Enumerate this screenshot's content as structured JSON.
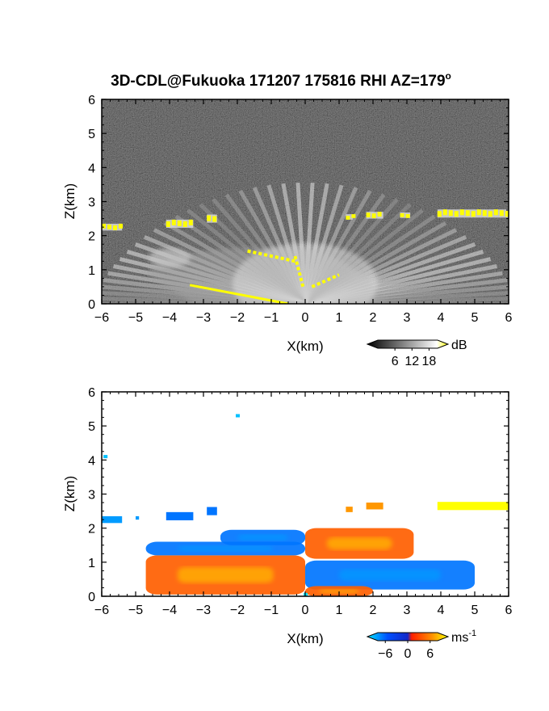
{
  "title": "3D-CDL@Fukuoka 171207 175816 RHI AZ=179",
  "title_superscript": "o",
  "chart_data": [
    {
      "type": "heatmap",
      "quantity": "backscatter intensity",
      "xlabel": "X(km)",
      "ylabel": "Z(km)",
      "xlim": [
        -6,
        6
      ],
      "ylim": [
        0,
        6
      ],
      "xticks": [
        "-6",
        "-5",
        "-4",
        "-3",
        "-2",
        "-1",
        "0",
        "1",
        "2",
        "3",
        "4",
        "5",
        "6"
      ],
      "yticks": [
        "0",
        "1",
        "2",
        "3",
        "4",
        "5",
        "6"
      ],
      "colorbar": {
        "unit": "dB",
        "ticks": [
          6,
          12,
          18
        ],
        "tick_labels": [
          "6",
          "12",
          "18"
        ],
        "range": [
          0,
          21
        ],
        "colors": [
          "#000000",
          "#ffffff",
          "#ffff00"
        ]
      },
      "features": {
        "cloud_layer": [
          {
            "x0": -6.0,
            "x1": -5.4,
            "z": 2.25,
            "dz": 0.1
          },
          {
            "x0": -4.1,
            "x1": -3.3,
            "z": 2.35,
            "dz": 0.12
          },
          {
            "x0": -2.9,
            "x1": -2.6,
            "z": 2.5,
            "dz": 0.12
          },
          {
            "x0": 1.2,
            "x1": 1.4,
            "z": 2.55,
            "dz": 0.08
          },
          {
            "x0": 1.8,
            "x1": 2.3,
            "z": 2.6,
            "dz": 0.1
          },
          {
            "x0": 2.8,
            "x1": 3.1,
            "z": 2.6,
            "dz": 0.08
          },
          {
            "x0": 3.9,
            "x1": 6.0,
            "z": 2.65,
            "dz": 0.12
          }
        ],
        "boundary_layer": {
          "x0": -4.7,
          "x1": 1.5,
          "z_top": 1.6
        },
        "ground_trace": {
          "x0": -3.4,
          "x1": -0.5,
          "z0": 0.55,
          "z1": 0.0
        }
      }
    },
    {
      "type": "heatmap",
      "quantity": "radial velocity",
      "xlabel": "X(km)",
      "ylabel": "Z(km)",
      "xlim": [
        -6,
        6
      ],
      "ylim": [
        0,
        6
      ],
      "xticks": [
        "-6",
        "-5",
        "-4",
        "-3",
        "-2",
        "-1",
        "0",
        "1",
        "2",
        "3",
        "4",
        "5",
        "6"
      ],
      "yticks": [
        "0",
        "1",
        "2",
        "3",
        "4",
        "5",
        "6"
      ],
      "colorbar": {
        "unit": "ms",
        "unit_exponent": "-1",
        "ticks": [
          -6,
          0,
          6
        ],
        "tick_labels": [
          "−6",
          "0",
          "6"
        ],
        "range": [
          -8,
          8
        ],
        "colors": [
          "#00e5ff",
          "#0050ff",
          "#ff2000",
          "#ffff00"
        ]
      },
      "regions": [
        {
          "x0": -4.7,
          "x1": 0.0,
          "z0": 0.05,
          "z1": 1.2,
          "velocity": 3
        },
        {
          "x0": -4.7,
          "x1": 0.0,
          "z0": 1.2,
          "z1": 1.6,
          "velocity": -5
        },
        {
          "x0": -2.5,
          "x1": 0.0,
          "z0": 1.5,
          "z1": 1.95,
          "velocity": -5
        },
        {
          "x0": 0.0,
          "x1": 5.0,
          "z0": 0.2,
          "z1": 1.05,
          "velocity": -5
        },
        {
          "x0": 0.0,
          "x1": 3.2,
          "z0": 1.1,
          "z1": 2.0,
          "velocity": 3
        },
        {
          "x0": 0.0,
          "x1": 2.0,
          "z0": 0.0,
          "z1": 0.3,
          "velocity": 3
        }
      ],
      "cloud_layer": [
        {
          "x0": -6.0,
          "x1": -5.4,
          "z": 2.25,
          "dz": 0.1,
          "velocity": -6
        },
        {
          "x0": -5.0,
          "x1": -4.9,
          "z": 2.3,
          "dz": 0.05,
          "velocity": -6
        },
        {
          "x0": -4.1,
          "x1": -3.3,
          "z": 2.35,
          "dz": 0.12,
          "velocity": -5
        },
        {
          "x0": -2.9,
          "x1": -2.6,
          "z": 2.5,
          "dz": 0.12,
          "velocity": -5
        },
        {
          "x0": 1.2,
          "x1": 1.4,
          "z": 2.55,
          "dz": 0.08,
          "velocity": 5
        },
        {
          "x0": 1.8,
          "x1": 2.3,
          "z": 2.65,
          "dz": 0.1,
          "velocity": 5
        },
        {
          "x0": 3.9,
          "x1": 6.0,
          "z": 2.65,
          "dz": 0.12,
          "velocity": 8
        }
      ],
      "isolated_points": [
        {
          "x": -2.0,
          "z": 5.3,
          "velocity": -7
        },
        {
          "x": -5.9,
          "z": 4.1,
          "velocity": -7
        },
        {
          "x": 0.0,
          "z": 0.05,
          "velocity": -8
        }
      ]
    }
  ]
}
